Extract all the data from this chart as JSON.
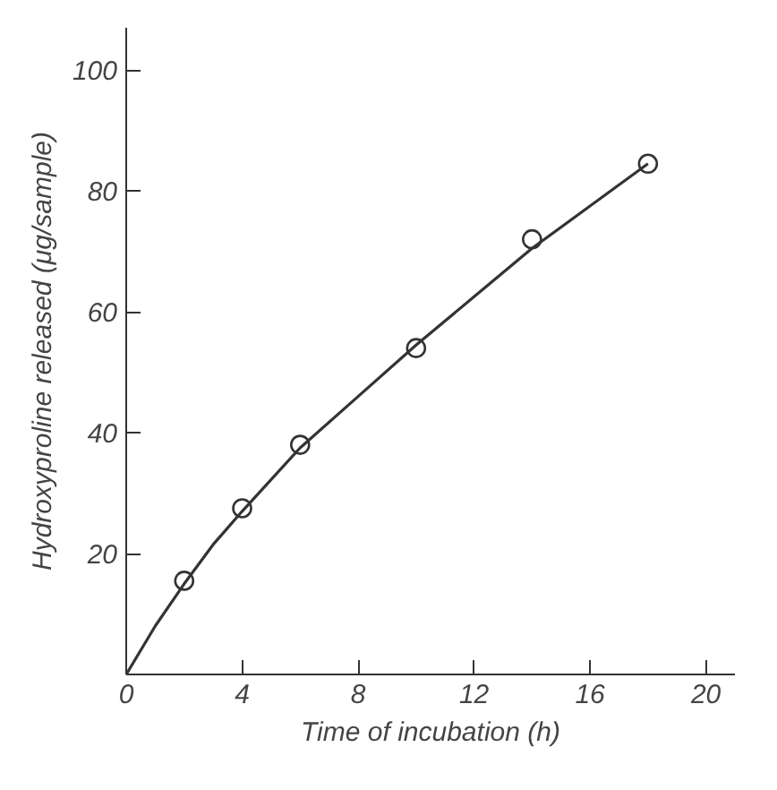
{
  "chart_data": {
    "type": "scatter",
    "xlabel": "Time of incubation (h)",
    "ylabel": "Hydroxyproline released (μg/sample)",
    "xlim": [
      0,
      21
    ],
    "ylim": [
      0,
      107
    ],
    "xticks": [
      0,
      4,
      8,
      12,
      16,
      20
    ],
    "yticks": [
      20,
      40,
      60,
      80,
      100
    ],
    "grid": false,
    "series": [
      {
        "marker": "circle",
        "color": "#333333",
        "x": [
          2,
          4,
          6,
          10,
          14,
          18
        ],
        "values": [
          15.5,
          27.5,
          38,
          54,
          72,
          84.5
        ]
      },
      {
        "type": "line",
        "line_style": "solid",
        "color": "#333333",
        "x": [
          0,
          1,
          2,
          3,
          4,
          6,
          8,
          10,
          12,
          14,
          16,
          18
        ],
        "values": [
          0,
          8,
          15,
          21.5,
          27,
          37.5,
          46,
          54.5,
          62.5,
          70.5,
          77.5,
          84.5
        ]
      }
    ]
  }
}
